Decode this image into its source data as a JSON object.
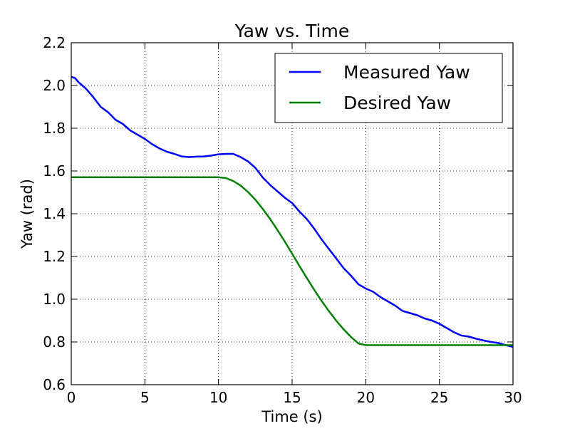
{
  "chart_data": {
    "type": "line",
    "title": "Yaw vs. Time",
    "xlabel": "Time (s)",
    "ylabel": "Yaw (rad)",
    "xlim": [
      0,
      30
    ],
    "ylim": [
      0.6,
      2.2
    ],
    "xticks": [
      "0",
      "5",
      "10",
      "15",
      "20",
      "25",
      "30"
    ],
    "yticks": [
      "0.6",
      "0.8",
      "1.0",
      "1.2",
      "1.4",
      "1.6",
      "1.8",
      "2.0",
      "2.2"
    ],
    "grid": true,
    "legend_position": "top-right",
    "series": [
      {
        "name": "Measured Yaw",
        "color": "#0000ff",
        "x": [
          0,
          0.25,
          0.5,
          0.75,
          1.0,
          1.5,
          2.0,
          2.5,
          3.0,
          3.5,
          4.0,
          4.5,
          5.0,
          5.5,
          6.0,
          6.5,
          7.0,
          7.5,
          8.0,
          8.5,
          9.0,
          9.5,
          10.0,
          10.5,
          11.0,
          11.5,
          12.0,
          12.5,
          13.0,
          13.5,
          14.0,
          14.5,
          15.0,
          15.5,
          16.0,
          16.5,
          17.0,
          17.5,
          18.0,
          18.5,
          19.0,
          19.5,
          20.0,
          20.5,
          21.0,
          21.5,
          22.0,
          22.5,
          23.0,
          23.5,
          24.0,
          24.5,
          25.0,
          25.5,
          26.0,
          26.5,
          27.0,
          27.5,
          28.0,
          28.5,
          29.0,
          29.5,
          30.0
        ],
        "values": [
          2.04,
          2.035,
          2.015,
          2.0,
          1.985,
          1.945,
          1.9,
          1.875,
          1.84,
          1.82,
          1.79,
          1.77,
          1.75,
          1.725,
          1.705,
          1.69,
          1.68,
          1.668,
          1.665,
          1.667,
          1.668,
          1.672,
          1.678,
          1.68,
          1.68,
          1.665,
          1.645,
          1.615,
          1.57,
          1.535,
          1.505,
          1.475,
          1.45,
          1.41,
          1.375,
          1.33,
          1.28,
          1.235,
          1.19,
          1.145,
          1.11,
          1.07,
          1.05,
          1.035,
          1.01,
          0.99,
          0.97,
          0.945,
          0.935,
          0.925,
          0.91,
          0.9,
          0.885,
          0.865,
          0.845,
          0.83,
          0.825,
          0.815,
          0.807,
          0.8,
          0.795,
          0.785,
          0.777
        ]
      },
      {
        "name": "Desired Yaw",
        "color": "#008000",
        "x": [
          0,
          2,
          4,
          6,
          8,
          10,
          10.5,
          11,
          11.5,
          12,
          12.5,
          13,
          13.5,
          14,
          14.5,
          15,
          15.5,
          16,
          16.5,
          17,
          17.5,
          18,
          18.5,
          19,
          19.5,
          20,
          22,
          24,
          26,
          28,
          30
        ],
        "values": [
          1.571,
          1.571,
          1.571,
          1.571,
          1.571,
          1.571,
          1.567,
          1.553,
          1.532,
          1.502,
          1.466,
          1.423,
          1.376,
          1.324,
          1.27,
          1.213,
          1.155,
          1.099,
          1.044,
          0.992,
          0.944,
          0.899,
          0.859,
          0.823,
          0.793,
          0.785,
          0.785,
          0.785,
          0.785,
          0.785,
          0.785
        ]
      }
    ]
  }
}
